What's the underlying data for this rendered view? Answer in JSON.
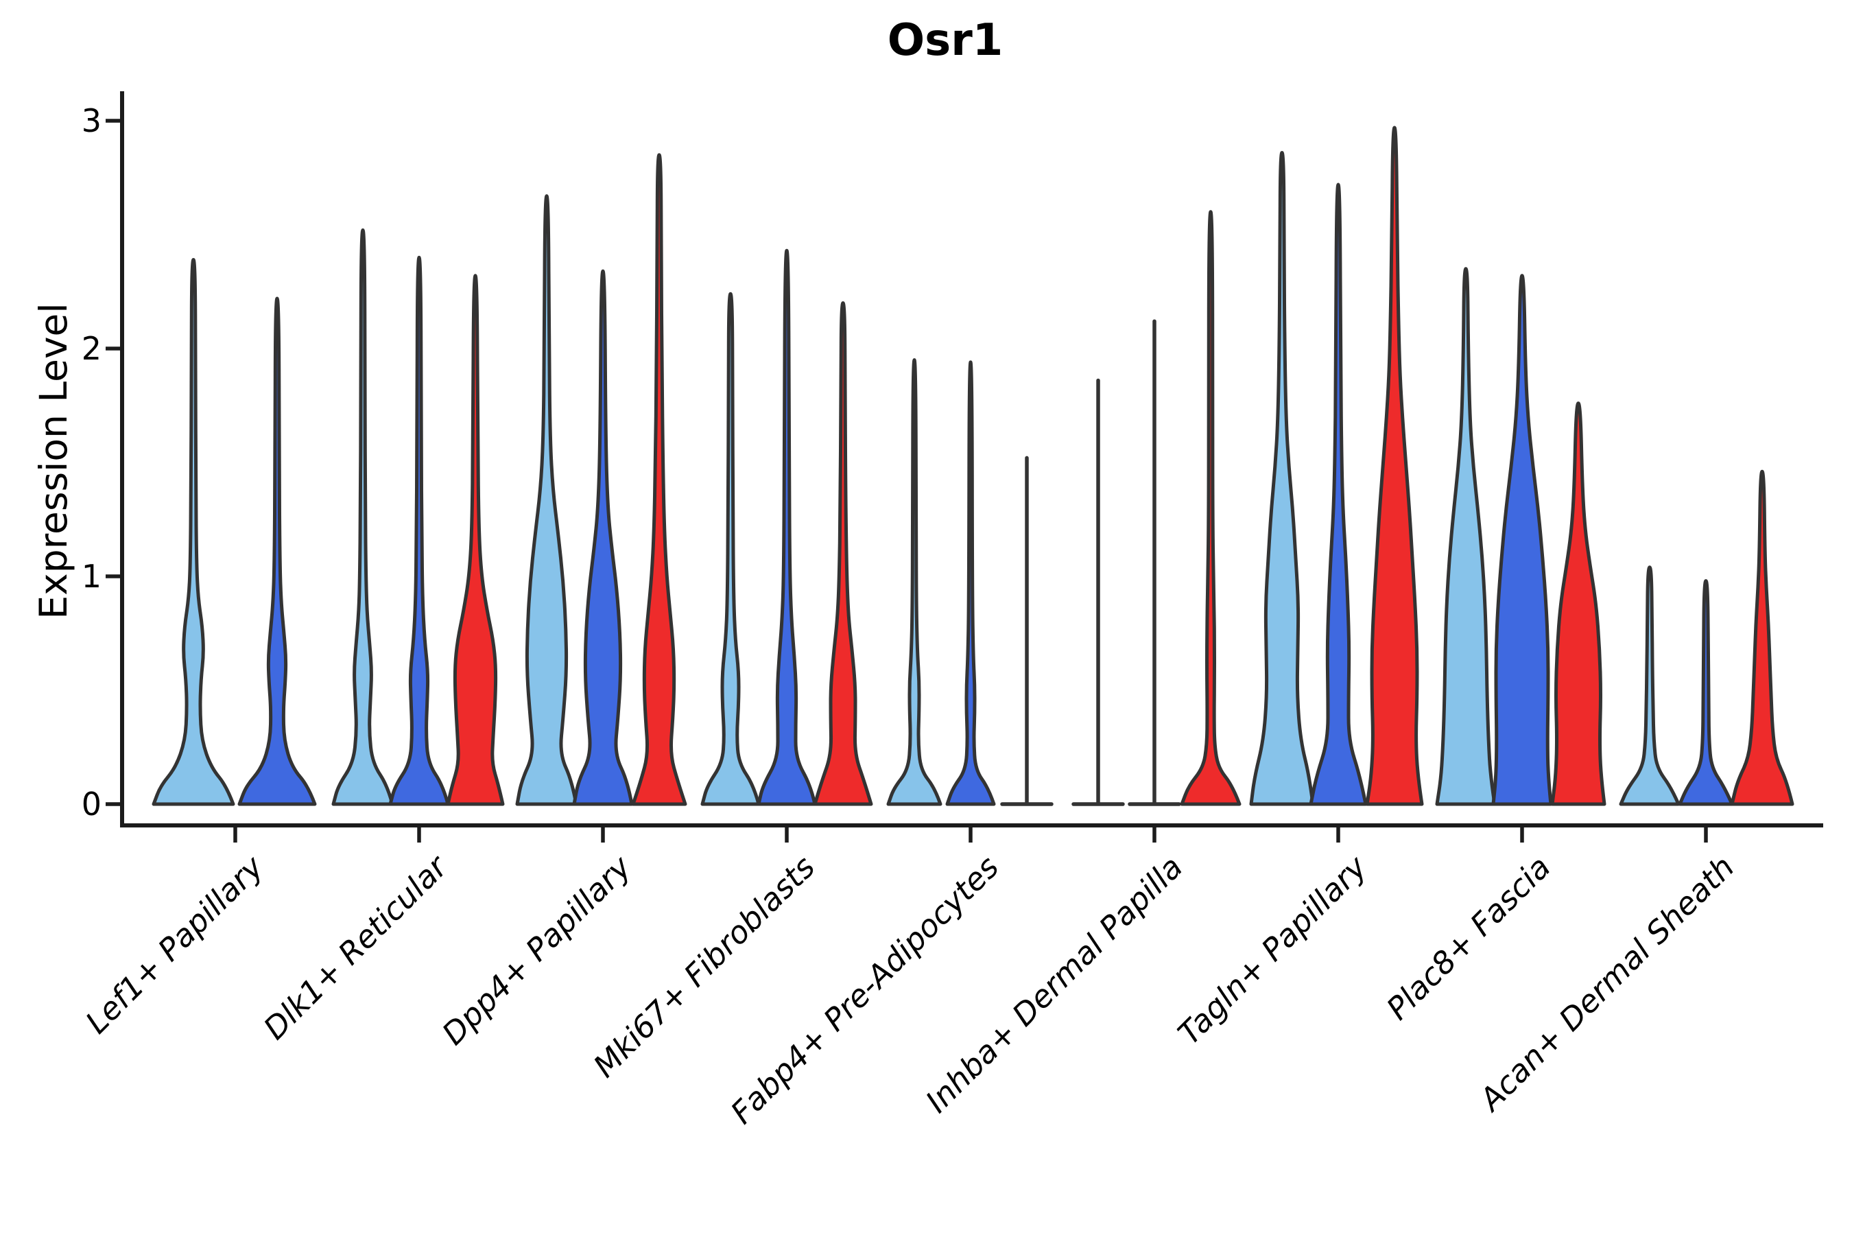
{
  "chart_data": {
    "type": "violin",
    "title": "Osr1",
    "xlabel": "",
    "ylabel": "Expression Level",
    "yticks": [
      0,
      1,
      2,
      3
    ],
    "ylim": [
      0,
      3.1
    ],
    "grid": false,
    "legend": "none",
    "categories": [
      "Lef1+ Papillary",
      "Dlk1+ Reticular",
      "Dpp4+ Papillary",
      "Mki67+ Fibroblasts",
      "Fabp4+ Pre-Adipocytes",
      "Inhba+ Dermal Papilla",
      "Tagln+ Papillary",
      "Plac8+ Fascia",
      "Acan+ Dermal Sheath"
    ],
    "series": [
      {
        "name": "light-blue",
        "color": "#87C3EA"
      },
      {
        "name": "royal-blue",
        "color": "#3F69E0"
      },
      {
        "name": "red",
        "color": "#EE2B2B"
      }
    ],
    "violins": [
      {
        "category": 0,
        "series": 0,
        "type": "violin",
        "max": 2.39,
        "profile": [
          [
            0,
            58
          ],
          [
            0.08,
            48
          ],
          [
            0.16,
            26
          ],
          [
            0.28,
            12
          ],
          [
            0.42,
            9.5
          ],
          [
            0.55,
            11
          ],
          [
            0.66,
            15
          ],
          [
            0.78,
            13
          ],
          [
            0.9,
            7
          ],
          [
            1.05,
            4.5
          ],
          [
            1.4,
            3.5
          ],
          [
            1.9,
            3
          ],
          [
            2.39,
            2.5
          ]
        ]
      },
      {
        "category": 0,
        "series": 1,
        "type": "violin",
        "max": 2.22,
        "profile": [
          [
            0,
            55
          ],
          [
            0.08,
            45
          ],
          [
            0.16,
            22
          ],
          [
            0.28,
            10
          ],
          [
            0.42,
            9
          ],
          [
            0.54,
            12
          ],
          [
            0.64,
            13
          ],
          [
            0.75,
            10
          ],
          [
            0.88,
            6
          ],
          [
            1.05,
            4
          ],
          [
            1.5,
            3
          ],
          [
            2.22,
            2.5
          ]
        ]
      },
      {
        "category": 1,
        "series": 0,
        "type": "violin",
        "max": 2.52,
        "profile": [
          [
            0,
            43
          ],
          [
            0.08,
            36
          ],
          [
            0.18,
            14
          ],
          [
            0.32,
            9
          ],
          [
            0.46,
            11
          ],
          [
            0.58,
            13
          ],
          [
            0.7,
            10
          ],
          [
            0.84,
            6
          ],
          [
            1.0,
            4.5
          ],
          [
            1.3,
            3.5
          ],
          [
            1.8,
            3
          ],
          [
            2.52,
            2.5
          ]
        ]
      },
      {
        "category": 1,
        "series": 1,
        "type": "violin",
        "max": 2.4,
        "profile": [
          [
            0,
            42
          ],
          [
            0.08,
            35
          ],
          [
            0.18,
            13
          ],
          [
            0.32,
            10
          ],
          [
            0.46,
            12
          ],
          [
            0.58,
            13
          ],
          [
            0.72,
            8
          ],
          [
            0.9,
            5
          ],
          [
            1.15,
            4
          ],
          [
            1.6,
            3
          ],
          [
            2.4,
            2.5
          ]
        ]
      },
      {
        "category": 1,
        "series": 2,
        "type": "violin",
        "max": 2.32,
        "profile": [
          [
            0,
            40
          ],
          [
            0.08,
            34
          ],
          [
            0.18,
            24
          ],
          [
            0.3,
            26
          ],
          [
            0.45,
            29
          ],
          [
            0.6,
            30
          ],
          [
            0.72,
            26
          ],
          [
            0.85,
            17
          ],
          [
            1.0,
            9
          ],
          [
            1.2,
            5
          ],
          [
            1.6,
            3.5
          ],
          [
            2.32,
            2.5
          ]
        ]
      },
      {
        "category": 2,
        "series": 0,
        "type": "violin",
        "max": 2.67,
        "profile": [
          [
            0,
            43
          ],
          [
            0.1,
            37
          ],
          [
            0.22,
            19
          ],
          [
            0.38,
            24
          ],
          [
            0.58,
            29
          ],
          [
            0.78,
            28
          ],
          [
            0.98,
            24
          ],
          [
            1.18,
            17
          ],
          [
            1.38,
            9
          ],
          [
            1.6,
            5
          ],
          [
            2.0,
            3.5
          ],
          [
            2.67,
            2.5
          ]
        ]
      },
      {
        "category": 2,
        "series": 1,
        "type": "violin",
        "max": 2.34,
        "profile": [
          [
            0,
            42
          ],
          [
            0.1,
            36
          ],
          [
            0.22,
            17
          ],
          [
            0.38,
            22
          ],
          [
            0.56,
            26
          ],
          [
            0.75,
            25
          ],
          [
            0.95,
            20
          ],
          [
            1.12,
            13
          ],
          [
            1.3,
            7
          ],
          [
            1.6,
            4
          ],
          [
            2.34,
            2.5
          ]
        ]
      },
      {
        "category": 2,
        "series": 2,
        "type": "violin",
        "max": 2.85,
        "profile": [
          [
            0,
            38
          ],
          [
            0.1,
            27
          ],
          [
            0.22,
            16
          ],
          [
            0.38,
            20
          ],
          [
            0.52,
            22
          ],
          [
            0.68,
            21
          ],
          [
            0.84,
            16
          ],
          [
            1.0,
            11
          ],
          [
            1.2,
            7.5
          ],
          [
            1.5,
            5.5
          ],
          [
            1.9,
            4
          ],
          [
            2.4,
            3
          ],
          [
            2.85,
            2.5
          ]
        ]
      },
      {
        "category": 3,
        "series": 0,
        "type": "violin",
        "max": 2.24,
        "profile": [
          [
            0,
            41
          ],
          [
            0.08,
            34
          ],
          [
            0.18,
            12
          ],
          [
            0.3,
            9
          ],
          [
            0.45,
            12
          ],
          [
            0.58,
            12
          ],
          [
            0.72,
            7
          ],
          [
            0.9,
            4.5
          ],
          [
            1.3,
            3.5
          ],
          [
            1.8,
            3
          ],
          [
            2.24,
            2.5
          ]
        ]
      },
      {
        "category": 3,
        "series": 1,
        "type": "violin",
        "max": 2.43,
        "profile": [
          [
            0,
            41
          ],
          [
            0.08,
            35
          ],
          [
            0.2,
            13
          ],
          [
            0.35,
            13
          ],
          [
            0.5,
            14
          ],
          [
            0.65,
            11
          ],
          [
            0.8,
            7
          ],
          [
            1.0,
            4.5
          ],
          [
            1.5,
            3.5
          ],
          [
            2.43,
            2.5
          ]
        ]
      },
      {
        "category": 3,
        "series": 2,
        "type": "violin",
        "max": 2.2,
        "profile": [
          [
            0,
            41
          ],
          [
            0.1,
            31
          ],
          [
            0.22,
            17
          ],
          [
            0.38,
            18
          ],
          [
            0.52,
            18
          ],
          [
            0.68,
            13
          ],
          [
            0.82,
            8
          ],
          [
            1.0,
            5.5
          ],
          [
            1.3,
            4
          ],
          [
            1.8,
            3
          ],
          [
            2.2,
            2.5
          ]
        ]
      },
      {
        "category": 4,
        "series": 0,
        "type": "violin",
        "max": 1.95,
        "profile": [
          [
            0,
            38
          ],
          [
            0.07,
            30
          ],
          [
            0.15,
            9
          ],
          [
            0.28,
            5.5
          ],
          [
            0.42,
            7
          ],
          [
            0.54,
            7
          ],
          [
            0.66,
            4.5
          ],
          [
            0.85,
            3
          ],
          [
            1.2,
            2.5
          ],
          [
            1.95,
            2
          ]
        ]
      },
      {
        "category": 4,
        "series": 1,
        "type": "violin",
        "max": 1.94,
        "profile": [
          [
            0,
            34
          ],
          [
            0.07,
            26
          ],
          [
            0.15,
            7
          ],
          [
            0.28,
            4.5
          ],
          [
            0.4,
            6
          ],
          [
            0.52,
            6
          ],
          [
            0.64,
            4
          ],
          [
            0.9,
            2.5
          ],
          [
            1.94,
            2
          ]
        ]
      },
      {
        "category": 4,
        "series": 2,
        "type": "line",
        "max": 1.52,
        "foot": 36,
        "profile": []
      },
      {
        "category": 5,
        "series": 0,
        "type": "line",
        "max": 1.86,
        "foot": 36,
        "profile": []
      },
      {
        "category": 5,
        "series": 1,
        "type": "line",
        "max": 2.12,
        "foot": 36,
        "profile": []
      },
      {
        "category": 5,
        "series": 2,
        "type": "violin",
        "max": 2.6,
        "profile": [
          [
            0,
            42
          ],
          [
            0.08,
            32
          ],
          [
            0.16,
            11
          ],
          [
            0.26,
            5.5
          ],
          [
            0.4,
            5
          ],
          [
            0.55,
            5.5
          ],
          [
            0.7,
            5.5
          ],
          [
            0.85,
            5
          ],
          [
            1.0,
            4
          ],
          [
            1.25,
            3
          ],
          [
            1.7,
            2.8
          ],
          [
            2.6,
            2.5
          ]
        ]
      },
      {
        "category": 6,
        "series": 0,
        "type": "violin",
        "max": 2.86,
        "profile": [
          [
            0,
            45
          ],
          [
            0.12,
            40
          ],
          [
            0.28,
            27
          ],
          [
            0.48,
            22
          ],
          [
            0.68,
            23
          ],
          [
            0.88,
            24
          ],
          [
            1.08,
            20
          ],
          [
            1.28,
            16
          ],
          [
            1.48,
            10
          ],
          [
            1.68,
            6
          ],
          [
            2.0,
            4
          ],
          [
            2.4,
            3
          ],
          [
            2.86,
            2.5
          ]
        ]
      },
      {
        "category": 6,
        "series": 1,
        "type": "violin",
        "max": 2.72,
        "profile": [
          [
            0,
            40
          ],
          [
            0.12,
            32
          ],
          [
            0.28,
            15
          ],
          [
            0.48,
            15
          ],
          [
            0.68,
            16
          ],
          [
            0.88,
            14
          ],
          [
            1.08,
            11
          ],
          [
            1.28,
            7
          ],
          [
            1.5,
            5
          ],
          [
            1.9,
            3.5
          ],
          [
            2.72,
            2.5
          ]
        ]
      },
      {
        "category": 6,
        "series": 2,
        "type": "violin",
        "max": 2.97,
        "profile": [
          [
            0,
            40
          ],
          [
            0.12,
            34
          ],
          [
            0.28,
            31
          ],
          [
            0.48,
            33
          ],
          [
            0.68,
            33
          ],
          [
            0.88,
            30
          ],
          [
            1.08,
            26
          ],
          [
            1.28,
            22
          ],
          [
            1.48,
            17
          ],
          [
            1.68,
            12
          ],
          [
            1.88,
            8
          ],
          [
            2.1,
            6
          ],
          [
            2.45,
            4
          ],
          [
            2.97,
            2.5
          ]
        ]
      },
      {
        "category": 7,
        "series": 0,
        "type": "violin",
        "max": 2.35,
        "profile": [
          [
            0,
            42
          ],
          [
            0.12,
            36
          ],
          [
            0.28,
            33
          ],
          [
            0.48,
            31
          ],
          [
            0.68,
            30
          ],
          [
            0.88,
            28
          ],
          [
            1.08,
            24
          ],
          [
            1.28,
            18
          ],
          [
            1.48,
            11
          ],
          [
            1.68,
            6
          ],
          [
            2.0,
            3.5
          ],
          [
            2.35,
            2.5
          ]
        ]
      },
      {
        "category": 7,
        "series": 1,
        "type": "violin",
        "max": 2.32,
        "profile": [
          [
            0,
            42
          ],
          [
            0.12,
            38
          ],
          [
            0.28,
            37
          ],
          [
            0.48,
            38
          ],
          [
            0.68,
            38
          ],
          [
            0.88,
            35
          ],
          [
            1.08,
            30
          ],
          [
            1.28,
            24
          ],
          [
            1.48,
            16
          ],
          [
            1.68,
            9
          ],
          [
            1.9,
            5
          ],
          [
            2.32,
            2.5
          ]
        ]
      },
      {
        "category": 7,
        "series": 2,
        "type": "violin",
        "max": 1.76,
        "profile": [
          [
            0,
            38
          ],
          [
            0.12,
            33
          ],
          [
            0.28,
            31
          ],
          [
            0.48,
            33
          ],
          [
            0.68,
            31
          ],
          [
            0.88,
            26
          ],
          [
            1.05,
            17
          ],
          [
            1.2,
            10
          ],
          [
            1.38,
            6
          ],
          [
            1.76,
            3
          ]
        ]
      },
      {
        "category": 8,
        "series": 0,
        "type": "violin",
        "max": 1.04,
        "profile": [
          [
            0,
            42
          ],
          [
            0.07,
            32
          ],
          [
            0.16,
            10
          ],
          [
            0.28,
            6
          ],
          [
            0.42,
            5
          ],
          [
            0.6,
            4
          ],
          [
            0.8,
            3.5
          ],
          [
            1.04,
            2.5
          ]
        ]
      },
      {
        "category": 8,
        "series": 1,
        "type": "violin",
        "max": 0.98,
        "profile": [
          [
            0,
            38
          ],
          [
            0.07,
            28
          ],
          [
            0.16,
            8
          ],
          [
            0.28,
            4.5
          ],
          [
            0.45,
            4
          ],
          [
            0.65,
            3.5
          ],
          [
            0.98,
            2.5
          ]
        ]
      },
      {
        "category": 8,
        "series": 2,
        "type": "violin",
        "max": 1.46,
        "profile": [
          [
            0,
            44
          ],
          [
            0.1,
            36
          ],
          [
            0.2,
            20
          ],
          [
            0.33,
            15
          ],
          [
            0.48,
            13
          ],
          [
            0.64,
            11
          ],
          [
            0.8,
            9
          ],
          [
            0.95,
            6
          ],
          [
            1.1,
            4
          ],
          [
            1.46,
            2.5
          ]
        ]
      }
    ]
  },
  "style": {
    "background": "#ffffff",
    "violin_outline": "#333333",
    "axis_color": "#1c1c1c",
    "text_color": "#000000"
  }
}
